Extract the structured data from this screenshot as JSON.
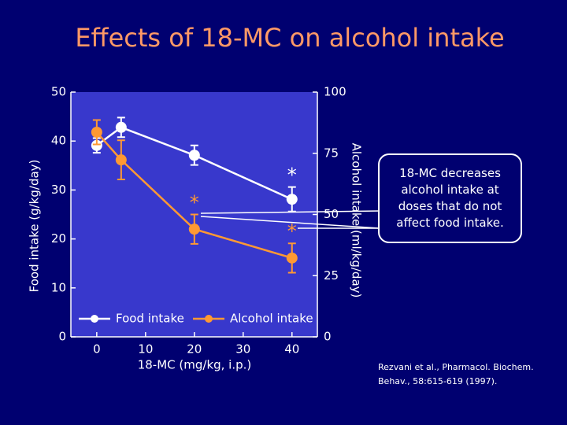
{
  "chart_data": {
    "type": "line",
    "title": "Effects of 18-MC on alcohol intake",
    "x_label": "18-MC (mg/kg, i.p.)",
    "y_label": "Food intake (g/kg/day)",
    "y2_label": "Alcohol intake (ml/kg/day)",
    "x": [
      0,
      5,
      20,
      40
    ],
    "xlim": [
      -5.3,
      45.2
    ],
    "xticks": [
      0,
      10,
      20,
      30,
      40
    ],
    "ylim": [
      0,
      50
    ],
    "yticks": [
      0,
      10,
      20,
      30,
      40,
      50
    ],
    "y2lim": [
      0,
      100
    ],
    "y2ticks": [
      0,
      25,
      50,
      75,
      100
    ],
    "series": [
      {
        "name": "Food intake",
        "color": "#ffffff",
        "values": [
          39.1,
          42.8,
          37.1,
          28.1
        ],
        "errors": [
          1.5,
          2,
          2,
          2.5
        ]
      },
      {
        "name": "Alcohol intake",
        "color": "#ff9933",
        "axis": "y2",
        "values": [
          83.6,
          72.3,
          44,
          32.2
        ],
        "errors": [
          5,
          8,
          6,
          6
        ]
      }
    ],
    "annotations": [
      "*",
      "*",
      "*"
    ],
    "callout": "18-MC decreases alcohol intake at doses that do not affect food intake.",
    "citation": "Rezvani et al., Pharmacol. Biochem. Behav., 58:615-619 (1997)."
  }
}
